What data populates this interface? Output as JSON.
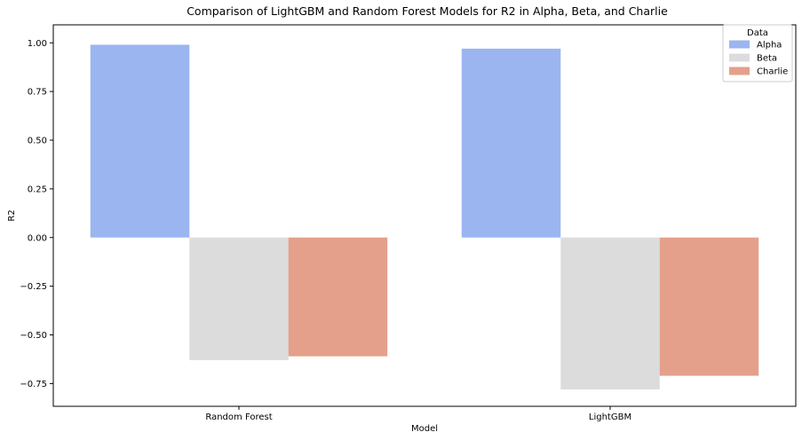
{
  "chart_data": {
    "type": "bar",
    "title": "Comparison of LightGBM and Random Forest Models for R2 in Alpha, Beta, and Charlie",
    "xlabel": "Model",
    "ylabel": "R2",
    "categories": [
      "Random Forest",
      "LightGBM"
    ],
    "series": [
      {
        "name": "Alpha",
        "color": "#9bb5f0",
        "values": [
          0.99,
          0.97
        ]
      },
      {
        "name": "Beta",
        "color": "#dcdcdc",
        "values": [
          -0.63,
          -0.78
        ]
      },
      {
        "name": "Charlie",
        "color": "#e4a08a",
        "values": [
          -0.61,
          -0.71
        ]
      }
    ],
    "ylim": [
      -0.8667,
      1.0923
    ],
    "yticks": [
      -0.75,
      -0.5,
      -0.25,
      0.0,
      0.25,
      0.5,
      0.75,
      1.0
    ],
    "ytick_labels": [
      "−0.75",
      "−0.50",
      "−0.25",
      "0.00",
      "0.25",
      "0.50",
      "0.75",
      "1.00"
    ],
    "legend": {
      "title": "Data",
      "position": "top-right"
    },
    "grid": false
  }
}
